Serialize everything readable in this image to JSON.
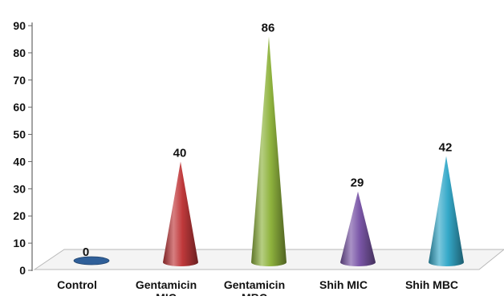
{
  "chart_data": {
    "type": "bar",
    "bar_shape": "cone",
    "title": "",
    "xlabel": "",
    "ylabel": "",
    "ylim": [
      0,
      90
    ],
    "yticks": [
      0,
      10,
      20,
      30,
      40,
      50,
      60,
      70,
      80,
      90
    ],
    "grid": false,
    "legend": "none",
    "categories": [
      "Control",
      "Gentamicin MIC",
      "Gentamicin MBC",
      "Shih MIC",
      "Shih MBC"
    ],
    "values": [
      0,
      40,
      86,
      29,
      42
    ],
    "data_labels": [
      "0",
      "40",
      "86",
      "29",
      "42"
    ],
    "colors": [
      "#2f5f99",
      "#c0393b",
      "#8fb33e",
      "#7b57a8",
      "#35a9c9"
    ],
    "floor_color": "#f4f4f4",
    "axis_color": "#666666"
  }
}
